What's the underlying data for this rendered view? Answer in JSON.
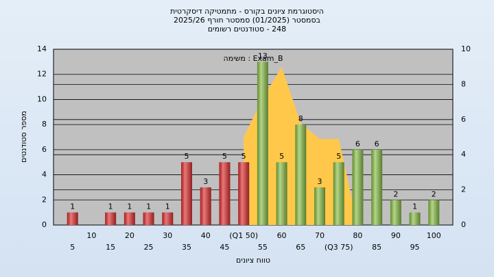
{
  "chart_data": {
    "type": "bar",
    "title": "היסטוגרמת ציונים בקורס - מתמטיקה דיסקרטית",
    "subtitle": "בסמסטר (01/2025) סמסטר חורף 2025/26",
    "subtitle2": "248 - סטודנטים רשומים",
    "annotation": "Exam_B : משימה",
    "x_label": "טווח ציונים",
    "y_label": "מספר סטודנטים",
    "categories": [
      "5",
      "10",
      "15",
      "20",
      "25",
      "30",
      "35",
      "40",
      "45",
      "(Q1 50)",
      "55",
      "60",
      "65",
      "70",
      "(Q3 75)",
      "80",
      "85",
      "90",
      "95",
      "100"
    ],
    "values": [
      1,
      0,
      1,
      1,
      1,
      1,
      5,
      3,
      5,
      5,
      13,
      5,
      8,
      3,
      5,
      6,
      6,
      2,
      1,
      2
    ],
    "bar_colors": [
      "#e03030",
      "#e03030",
      "#e03030",
      "#e03030",
      "#e03030",
      "#e03030",
      "#e03030",
      "#e03030",
      "#e03030",
      "#e03030",
      "#8cc048",
      "#8cc048",
      "#8cc048",
      "#8cc048",
      "#8cc048",
      "#8cc048",
      "#8cc048",
      "#8cc048",
      "#8cc048",
      "#8cc048"
    ],
    "area": {
      "color": "#ffc84a",
      "axis": "y2",
      "values": [
        null,
        null,
        null,
        null,
        null,
        null,
        null,
        null,
        null,
        5.0,
        7.2,
        9.0,
        5.8,
        4.9,
        4.9,
        0,
        null,
        null,
        null,
        null
      ]
    },
    "ylim": [
      0,
      14
    ],
    "yticks": [
      0,
      2,
      4,
      6,
      8,
      10,
      12,
      14
    ],
    "y2lim": [
      0,
      10
    ],
    "y2ticks": [
      0,
      2,
      4,
      6,
      8,
      10
    ],
    "grid": true
  }
}
